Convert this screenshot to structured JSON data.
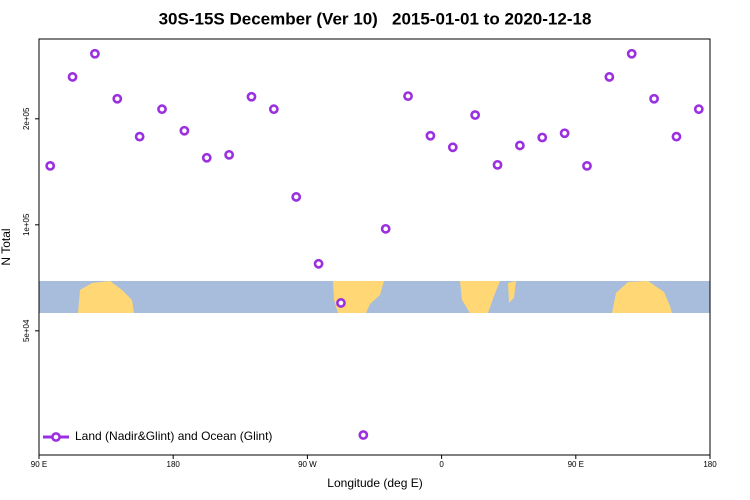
{
  "chart_data": {
    "type": "scatter",
    "title": "30S-15S December (Ver 10)   2015-01-01 to 2020-12-18",
    "x_label": "Longitude (deg E)",
    "y_label": "N Total",
    "xlim": [
      90,
      540
    ],
    "xticks": [
      {
        "value": 90,
        "label": "90 E"
      },
      180,
      {
        "value": 270,
        "label": "90 W"
      },
      {
        "value": 360,
        "label": "0"
      },
      {
        "value": 450,
        "label": "90 E"
      },
      {
        "value": 540,
        "label": "180"
      }
    ],
    "ylim": [
      22200,
      337000
    ],
    "ylog": true,
    "yticks": [
      {
        "value": 50000,
        "label": "5e+04"
      },
      {
        "value": 100000,
        "label": "1e+05"
      },
      {
        "value": 200000,
        "label": "2e+05"
      }
    ],
    "legend": "bottom-left",
    "series": [
      {
        "name": "Land (Nadir&Glint) and Ocean (Glint)",
        "color": "#9b30e0",
        "x": [
          97.5,
          112.5,
          127.5,
          142.5,
          157.5,
          172.5,
          187.5,
          202.5,
          217.5,
          232.5,
          247.5,
          262.5,
          277.5,
          292.5,
          307.5,
          322.5,
          337.5,
          352.5,
          367.5,
          382.5,
          397.5,
          412.5,
          427.5,
          442.5,
          457.5,
          472.5,
          487.5,
          502.5,
          517.5,
          532.5
        ],
        "values": [
          147000,
          263000,
          306000,
          228000,
          178000,
          213000,
          185000,
          155000,
          158000,
          231000,
          213000,
          120000,
          77500,
          60000,
          25300,
          97400,
          232000,
          179000,
          166000,
          205000,
          148000,
          168000,
          177000,
          182000,
          147000,
          263000,
          306000,
          228000,
          178000,
          213000
        ]
      }
    ]
  }
}
